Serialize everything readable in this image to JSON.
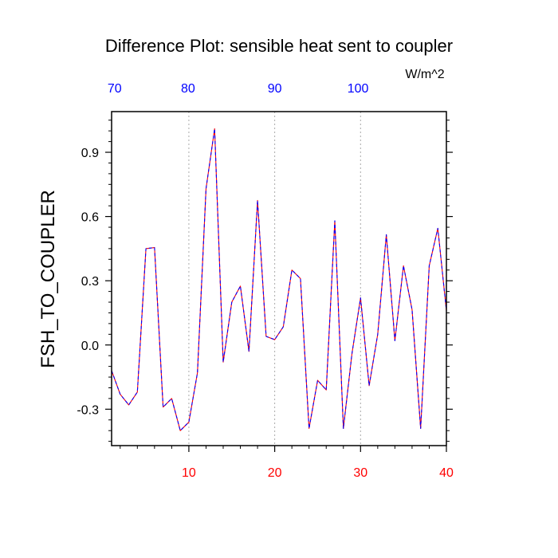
{
  "chart_data": {
    "type": "line",
    "title": "Difference Plot: sensible heat sent to coupler",
    "ylabel": "FSH_TO_COUPLER",
    "units_label": "W/m^2",
    "xlim": [
      1,
      40
    ],
    "ylim": [
      -0.47,
      1.09
    ],
    "x_ticks": [
      "10",
      "20",
      "30",
      "40"
    ],
    "x_tick_values": [
      10,
      20,
      30,
      40
    ],
    "y_ticks": [
      "-0.3",
      "0.0",
      "0.3",
      "0.6",
      "0.9"
    ],
    "y_tick_values": [
      -0.3,
      0.0,
      0.3,
      0.6,
      0.9
    ],
    "top_axis_ticks": [
      "70",
      "80",
      "90",
      "100"
    ],
    "top_axis_tick_positions_x": [
      1.35,
      9.9,
      20,
      29.7
    ],
    "grid": "vertical dotted at x = 10, 20, 30",
    "colors": {
      "series_a": "#ff0000",
      "series_b": "#0000ff",
      "bottom_ticks": "#ff0000",
      "top_ticks": "#0000ff",
      "grid": "#aaaaaa",
      "axes": "#000000"
    },
    "x": [
      1,
      2,
      3,
      4,
      5,
      6,
      7,
      8,
      9,
      10,
      11,
      12,
      13,
      14,
      15,
      16,
      17,
      18,
      19,
      20,
      21,
      22,
      23,
      24,
      25,
      26,
      27,
      28,
      29,
      30,
      31,
      32,
      33,
      34,
      35,
      36,
      37,
      38,
      39,
      40
    ],
    "series": [
      {
        "values": [
          -0.12,
          -0.23,
          -0.28,
          -0.22,
          0.45,
          0.455,
          -0.29,
          -0.25,
          -0.4,
          -0.36,
          -0.13,
          0.73,
          1.01,
          -0.08,
          0.2,
          0.275,
          -0.03,
          0.675,
          0.04,
          0.025,
          0.085,
          0.35,
          0.31,
          -0.39,
          -0.165,
          -0.21,
          0.58,
          -0.39,
          -0.04,
          0.22,
          -0.19,
          0.05,
          0.515,
          0.02,
          0.37,
          0.165,
          -0.39,
          0.37,
          0.545,
          0.16
        ]
      },
      {
        "values": [
          -0.12,
          -0.23,
          -0.28,
          -0.22,
          0.45,
          0.455,
          -0.29,
          -0.25,
          -0.4,
          -0.36,
          -0.13,
          0.73,
          1.01,
          -0.08,
          0.2,
          0.275,
          -0.03,
          0.675,
          0.04,
          0.025,
          0.085,
          0.35,
          0.31,
          -0.39,
          -0.165,
          -0.21,
          0.58,
          -0.39,
          -0.04,
          0.22,
          -0.19,
          0.05,
          0.515,
          0.02,
          0.37,
          0.165,
          -0.39,
          0.37,
          0.545,
          0.16
        ]
      }
    ]
  }
}
